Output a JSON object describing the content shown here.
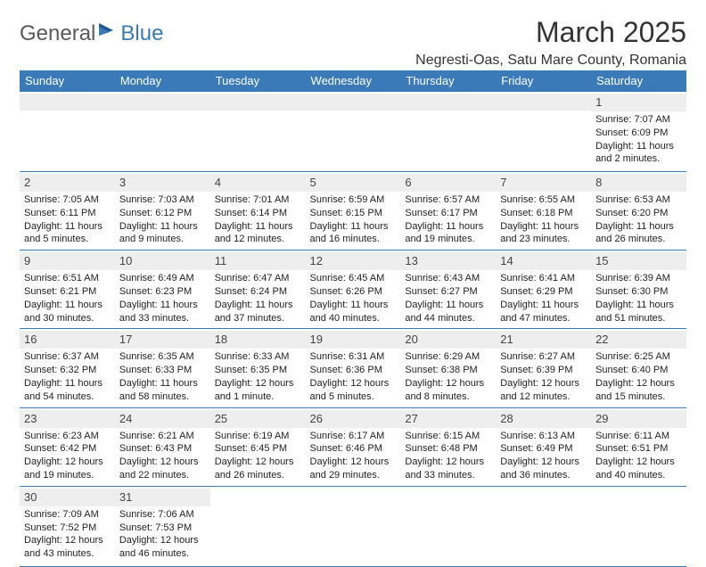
{
  "logo": {
    "text1": "General",
    "text2": "Blue"
  },
  "title": "March 2025",
  "location": "Negresti-Oas, Satu Mare County, Romania",
  "header_bg": "#3a7ab8",
  "day_headers": [
    "Sunday",
    "Monday",
    "Tuesday",
    "Wednesday",
    "Thursday",
    "Friday",
    "Saturday"
  ],
  "weeks": [
    [
      null,
      null,
      null,
      null,
      null,
      null,
      {
        "n": "1",
        "sr": "Sunrise: 7:07 AM",
        "ss": "Sunset: 6:09 PM",
        "dl1": "Daylight: 11 hours",
        "dl2": "and 2 minutes."
      }
    ],
    [
      {
        "n": "2",
        "sr": "Sunrise: 7:05 AM",
        "ss": "Sunset: 6:11 PM",
        "dl1": "Daylight: 11 hours",
        "dl2": "and 5 minutes."
      },
      {
        "n": "3",
        "sr": "Sunrise: 7:03 AM",
        "ss": "Sunset: 6:12 PM",
        "dl1": "Daylight: 11 hours",
        "dl2": "and 9 minutes."
      },
      {
        "n": "4",
        "sr": "Sunrise: 7:01 AM",
        "ss": "Sunset: 6:14 PM",
        "dl1": "Daylight: 11 hours",
        "dl2": "and 12 minutes."
      },
      {
        "n": "5",
        "sr": "Sunrise: 6:59 AM",
        "ss": "Sunset: 6:15 PM",
        "dl1": "Daylight: 11 hours",
        "dl2": "and 16 minutes."
      },
      {
        "n": "6",
        "sr": "Sunrise: 6:57 AM",
        "ss": "Sunset: 6:17 PM",
        "dl1": "Daylight: 11 hours",
        "dl2": "and 19 minutes."
      },
      {
        "n": "7",
        "sr": "Sunrise: 6:55 AM",
        "ss": "Sunset: 6:18 PM",
        "dl1": "Daylight: 11 hours",
        "dl2": "and 23 minutes."
      },
      {
        "n": "8",
        "sr": "Sunrise: 6:53 AM",
        "ss": "Sunset: 6:20 PM",
        "dl1": "Daylight: 11 hours",
        "dl2": "and 26 minutes."
      }
    ],
    [
      {
        "n": "9",
        "sr": "Sunrise: 6:51 AM",
        "ss": "Sunset: 6:21 PM",
        "dl1": "Daylight: 11 hours",
        "dl2": "and 30 minutes."
      },
      {
        "n": "10",
        "sr": "Sunrise: 6:49 AM",
        "ss": "Sunset: 6:23 PM",
        "dl1": "Daylight: 11 hours",
        "dl2": "and 33 minutes."
      },
      {
        "n": "11",
        "sr": "Sunrise: 6:47 AM",
        "ss": "Sunset: 6:24 PM",
        "dl1": "Daylight: 11 hours",
        "dl2": "and 37 minutes."
      },
      {
        "n": "12",
        "sr": "Sunrise: 6:45 AM",
        "ss": "Sunset: 6:26 PM",
        "dl1": "Daylight: 11 hours",
        "dl2": "and 40 minutes."
      },
      {
        "n": "13",
        "sr": "Sunrise: 6:43 AM",
        "ss": "Sunset: 6:27 PM",
        "dl1": "Daylight: 11 hours",
        "dl2": "and 44 minutes."
      },
      {
        "n": "14",
        "sr": "Sunrise: 6:41 AM",
        "ss": "Sunset: 6:29 PM",
        "dl1": "Daylight: 11 hours",
        "dl2": "and 47 minutes."
      },
      {
        "n": "15",
        "sr": "Sunrise: 6:39 AM",
        "ss": "Sunset: 6:30 PM",
        "dl1": "Daylight: 11 hours",
        "dl2": "and 51 minutes."
      }
    ],
    [
      {
        "n": "16",
        "sr": "Sunrise: 6:37 AM",
        "ss": "Sunset: 6:32 PM",
        "dl1": "Daylight: 11 hours",
        "dl2": "and 54 minutes."
      },
      {
        "n": "17",
        "sr": "Sunrise: 6:35 AM",
        "ss": "Sunset: 6:33 PM",
        "dl1": "Daylight: 11 hours",
        "dl2": "and 58 minutes."
      },
      {
        "n": "18",
        "sr": "Sunrise: 6:33 AM",
        "ss": "Sunset: 6:35 PM",
        "dl1": "Daylight: 12 hours",
        "dl2": "and 1 minute."
      },
      {
        "n": "19",
        "sr": "Sunrise: 6:31 AM",
        "ss": "Sunset: 6:36 PM",
        "dl1": "Daylight: 12 hours",
        "dl2": "and 5 minutes."
      },
      {
        "n": "20",
        "sr": "Sunrise: 6:29 AM",
        "ss": "Sunset: 6:38 PM",
        "dl1": "Daylight: 12 hours",
        "dl2": "and 8 minutes."
      },
      {
        "n": "21",
        "sr": "Sunrise: 6:27 AM",
        "ss": "Sunset: 6:39 PM",
        "dl1": "Daylight: 12 hours",
        "dl2": "and 12 minutes."
      },
      {
        "n": "22",
        "sr": "Sunrise: 6:25 AM",
        "ss": "Sunset: 6:40 PM",
        "dl1": "Daylight: 12 hours",
        "dl2": "and 15 minutes."
      }
    ],
    [
      {
        "n": "23",
        "sr": "Sunrise: 6:23 AM",
        "ss": "Sunset: 6:42 PM",
        "dl1": "Daylight: 12 hours",
        "dl2": "and 19 minutes."
      },
      {
        "n": "24",
        "sr": "Sunrise: 6:21 AM",
        "ss": "Sunset: 6:43 PM",
        "dl1": "Daylight: 12 hours",
        "dl2": "and 22 minutes."
      },
      {
        "n": "25",
        "sr": "Sunrise: 6:19 AM",
        "ss": "Sunset: 6:45 PM",
        "dl1": "Daylight: 12 hours",
        "dl2": "and 26 minutes."
      },
      {
        "n": "26",
        "sr": "Sunrise: 6:17 AM",
        "ss": "Sunset: 6:46 PM",
        "dl1": "Daylight: 12 hours",
        "dl2": "and 29 minutes."
      },
      {
        "n": "27",
        "sr": "Sunrise: 6:15 AM",
        "ss": "Sunset: 6:48 PM",
        "dl1": "Daylight: 12 hours",
        "dl2": "and 33 minutes."
      },
      {
        "n": "28",
        "sr": "Sunrise: 6:13 AM",
        "ss": "Sunset: 6:49 PM",
        "dl1": "Daylight: 12 hours",
        "dl2": "and 36 minutes."
      },
      {
        "n": "29",
        "sr": "Sunrise: 6:11 AM",
        "ss": "Sunset: 6:51 PM",
        "dl1": "Daylight: 12 hours",
        "dl2": "and 40 minutes."
      }
    ],
    [
      {
        "n": "30",
        "sr": "Sunrise: 7:09 AM",
        "ss": "Sunset: 7:52 PM",
        "dl1": "Daylight: 12 hours",
        "dl2": "and 43 minutes."
      },
      {
        "n": "31",
        "sr": "Sunrise: 7:06 AM",
        "ss": "Sunset: 7:53 PM",
        "dl1": "Daylight: 12 hours",
        "dl2": "and 46 minutes."
      },
      null,
      null,
      null,
      null,
      null
    ]
  ]
}
